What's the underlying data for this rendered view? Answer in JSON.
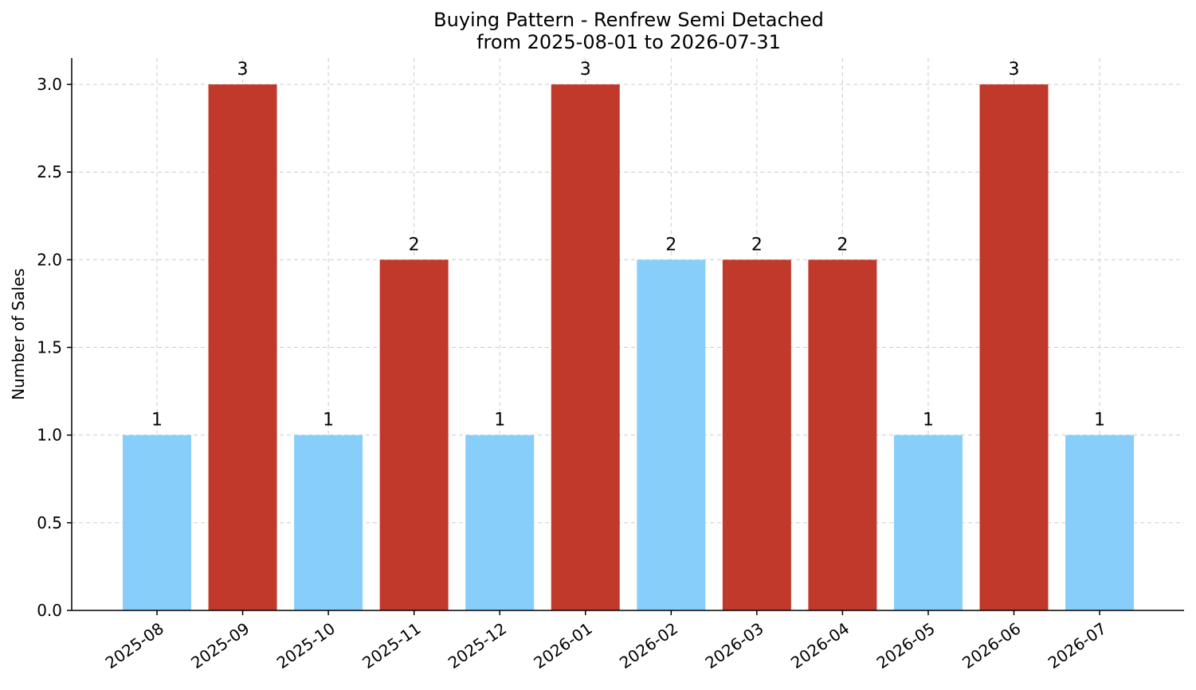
{
  "chart_data": {
    "type": "bar",
    "title": "Buying Pattern - Renfrew Semi Detached",
    "subtitle": "from 2025-08-01 to 2026-07-31",
    "xlabel": "",
    "ylabel": "Number of Sales",
    "ylim": [
      0,
      3.15
    ],
    "yticks": [
      0.0,
      0.5,
      1.0,
      1.5,
      2.0,
      2.5,
      3.0
    ],
    "ytick_labels": [
      "0.0",
      "0.5",
      "1.0",
      "1.5",
      "2.0",
      "2.5",
      "3.0"
    ],
    "categories": [
      "2025-08",
      "2025-09",
      "2025-10",
      "2025-11",
      "2025-12",
      "2026-01",
      "2026-02",
      "2026-03",
      "2026-04",
      "2026-05",
      "2026-06",
      "2026-07"
    ],
    "values": [
      1,
      3,
      1,
      2,
      1,
      3,
      2,
      2,
      2,
      1,
      3,
      1
    ],
    "data_labels": [
      "1",
      "3",
      "1",
      "2",
      "1",
      "3",
      "2",
      "2",
      "2",
      "1",
      "3",
      "1"
    ],
    "bar_colors": [
      "#87cefa",
      "#c0392b",
      "#87cefa",
      "#c0392b",
      "#87cefa",
      "#c0392b",
      "#87cefa",
      "#c0392b",
      "#c0392b",
      "#87cefa",
      "#c0392b",
      "#87cefa"
    ],
    "grid": true,
    "legend": "none"
  }
}
